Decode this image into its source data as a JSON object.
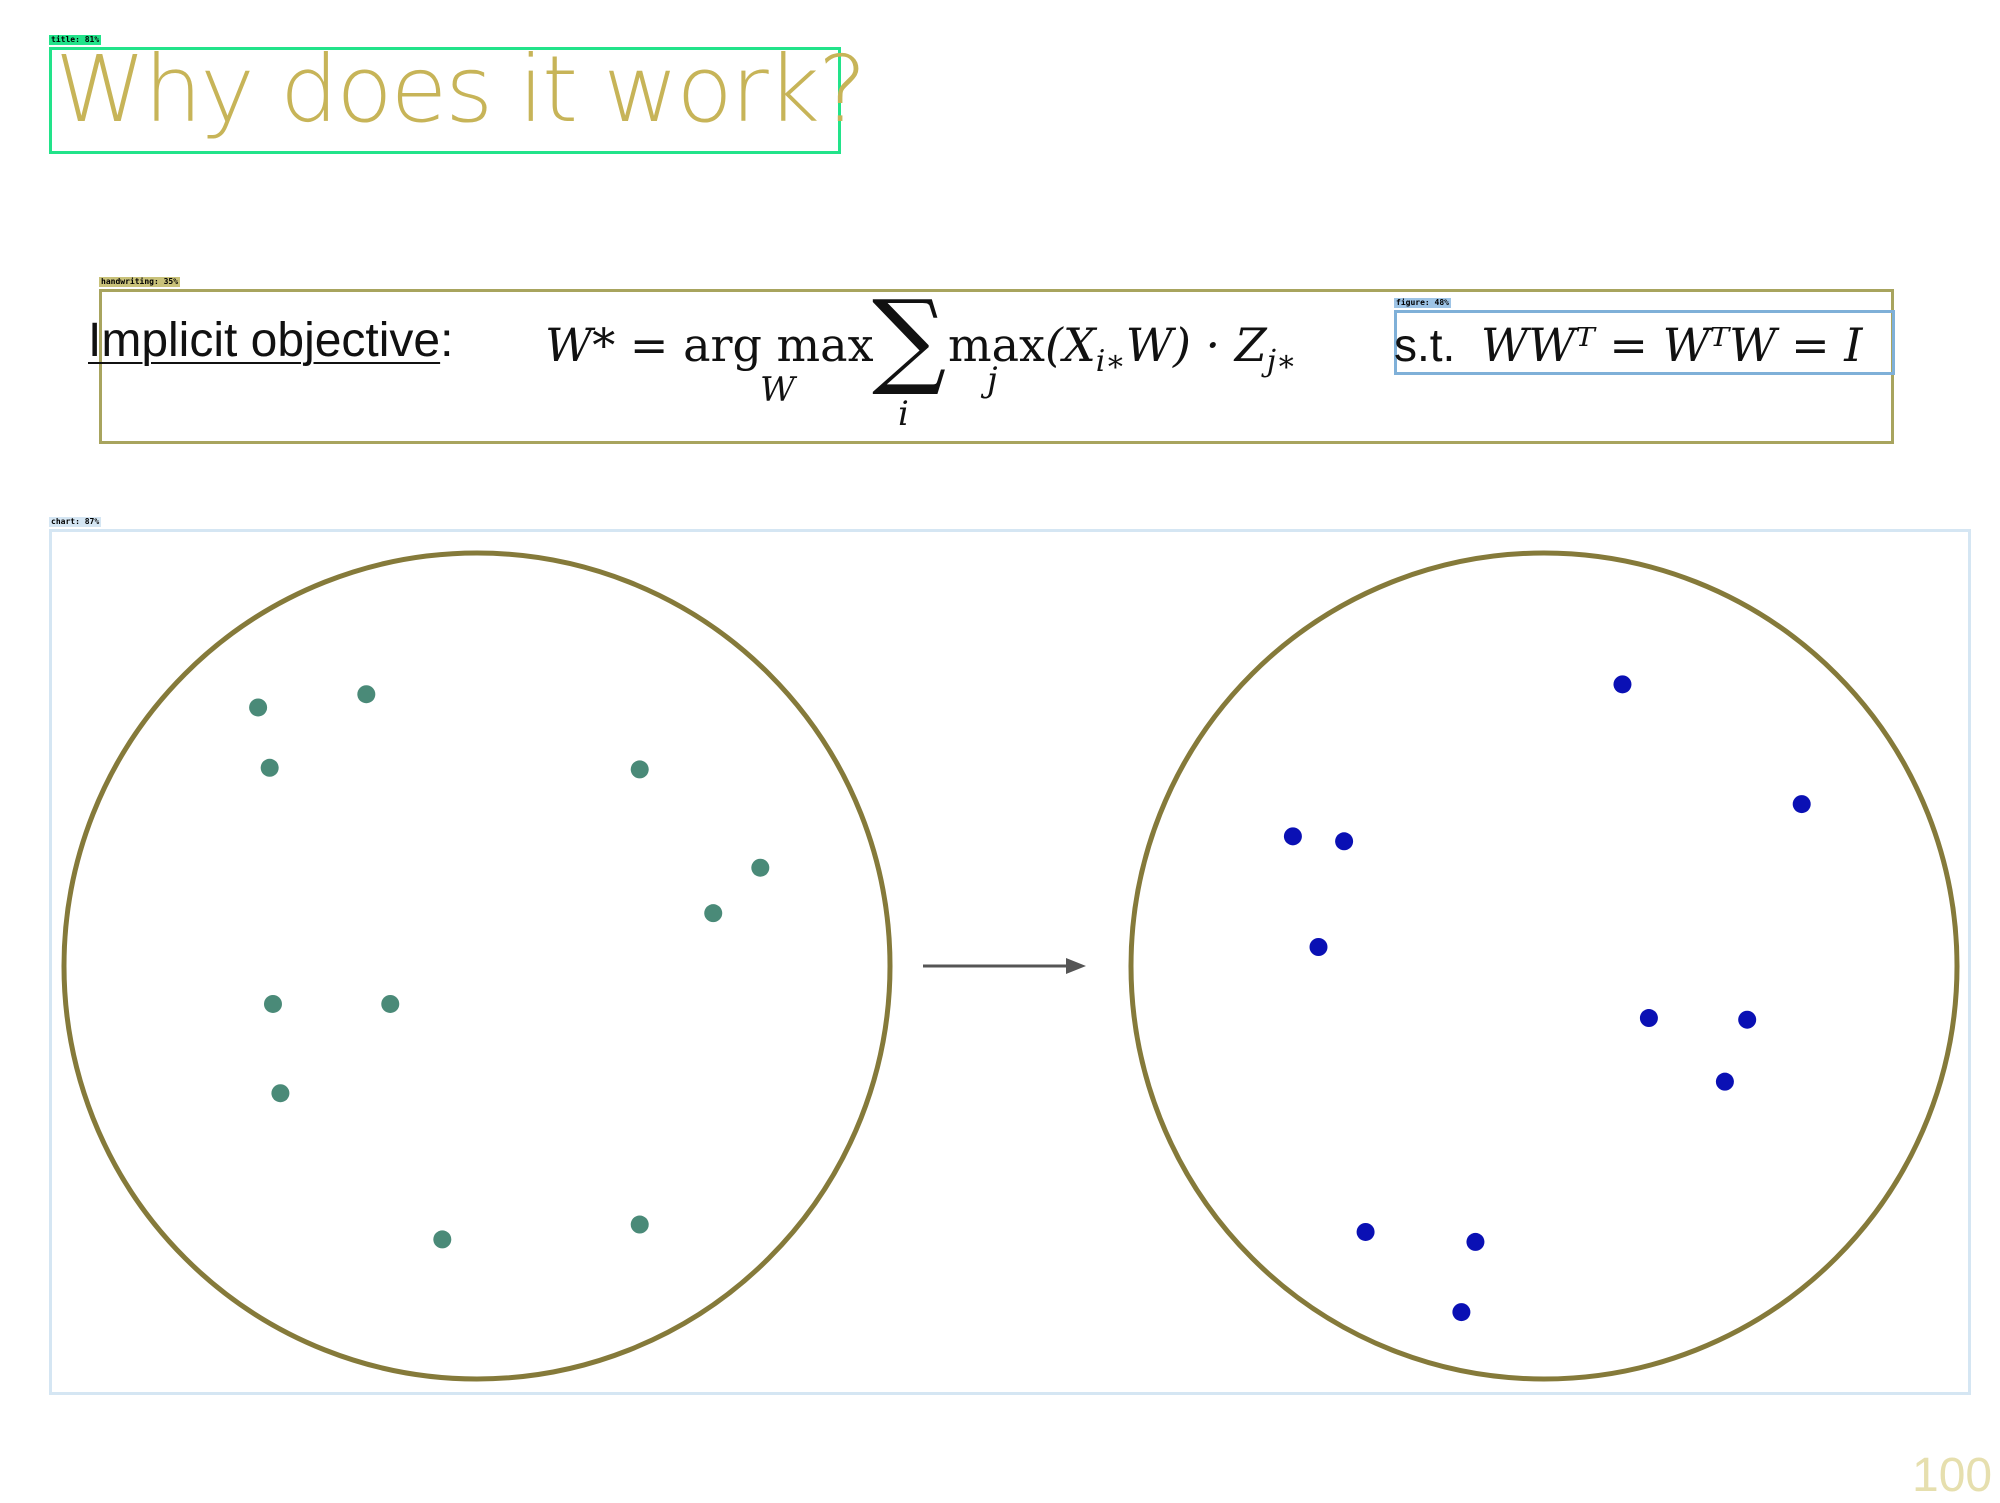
{
  "slide": {
    "title": "Why does it work?",
    "page_number": "100"
  },
  "detections": {
    "title_tag": "title: 81%",
    "handwriting_tag": "handwriting: 35%",
    "figure_tag": "figure: 48%",
    "chart_tag": "chart: 87%"
  },
  "objective": {
    "label": "Implicit objective",
    "colon": ":",
    "lhs": "W* = ",
    "argmax": "arg max",
    "argmax_sub": "W",
    "sum_symbol": "∑",
    "sum_sub": "i",
    "max_word": "max",
    "max_sub": "j",
    "rhs": "(X",
    "rhs_sub1": "i∗",
    "rhs_mid": "W) · Z",
    "rhs_sub2": "j∗"
  },
  "constraint": {
    "st": "s.t.",
    "equation": "WWᵀ = WᵀW = I"
  },
  "diagram": {
    "colors": {
      "circle_stroke": "#857a3a",
      "left_points": "#4a8a78",
      "right_points": "#0a10b4",
      "arrow": "#555555"
    },
    "left_points": [
      [
        0.235,
        0.187
      ],
      [
        0.366,
        0.171
      ],
      [
        0.249,
        0.26
      ],
      [
        0.697,
        0.262
      ],
      [
        0.843,
        0.381
      ],
      [
        0.786,
        0.436
      ],
      [
        0.253,
        0.546
      ],
      [
        0.395,
        0.546
      ],
      [
        0.262,
        0.654
      ],
      [
        0.458,
        0.831
      ],
      [
        0.697,
        0.813
      ]
    ],
    "right_points": [
      [
        0.595,
        0.159
      ],
      [
        0.812,
        0.304
      ],
      [
        0.196,
        0.343
      ],
      [
        0.258,
        0.349
      ],
      [
        0.227,
        0.477
      ],
      [
        0.627,
        0.563
      ],
      [
        0.746,
        0.565
      ],
      [
        0.719,
        0.64
      ],
      [
        0.284,
        0.822
      ],
      [
        0.417,
        0.834
      ],
      [
        0.4,
        0.919
      ]
    ]
  }
}
